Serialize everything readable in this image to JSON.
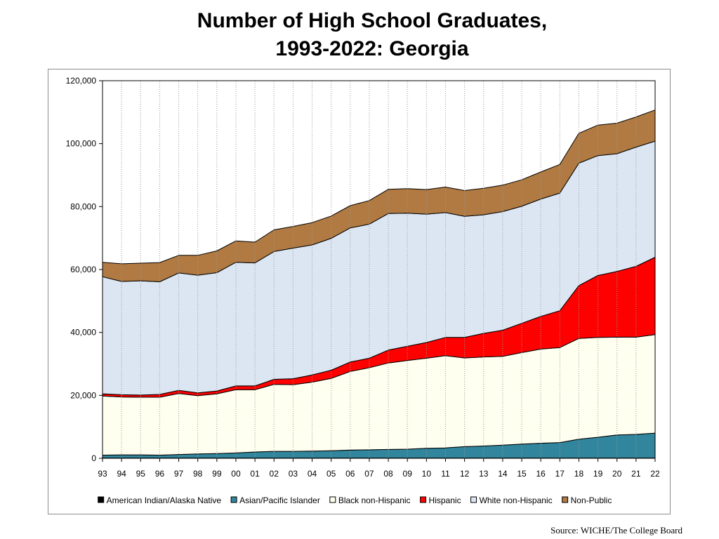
{
  "title": {
    "line1": "Number of High School Graduates,",
    "line2": "1993-2022:  Georgia"
  },
  "source": "Source: WICHE/The College Board",
  "chart_data": {
    "type": "area",
    "stacked": true,
    "title": "Number of High School Graduates, 1993-2022:  Georgia",
    "xlabel": "",
    "ylabel": "",
    "ylim": [
      0,
      120000
    ],
    "yticks": [
      0,
      20000,
      40000,
      60000,
      80000,
      100000,
      120000
    ],
    "ytick_labels": [
      "0",
      "20,000",
      "40,000",
      "60,000",
      "80,000",
      "100,000",
      "120,000"
    ],
    "grid": "vertical dotted",
    "legend": "bottom",
    "x": [
      "93",
      "94",
      "95",
      "96",
      "97",
      "98",
      "99",
      "00",
      "01",
      "02",
      "03",
      "04",
      "05",
      "06",
      "07",
      "08",
      "09",
      "10",
      "11",
      "12",
      "13",
      "14",
      "15",
      "16",
      "17",
      "18",
      "19",
      "20",
      "21",
      "22"
    ],
    "series": [
      {
        "name": "American Indian/Alaska  Native",
        "color": "#000000",
        "values": [
          100,
          100,
          100,
          100,
          100,
          100,
          100,
          100,
          100,
          100,
          100,
          100,
          100,
          100,
          100,
          100,
          100,
          100,
          100,
          100,
          100,
          100,
          100,
          100,
          100,
          100,
          100,
          100,
          100,
          100
        ]
      },
      {
        "name": "Asian/Pacific Islander",
        "color": "#31859c",
        "values": [
          900,
          1000,
          1000,
          900,
          1100,
          1300,
          1400,
          1600,
          1900,
          2100,
          2100,
          2200,
          2300,
          2500,
          2600,
          2700,
          2800,
          3100,
          3200,
          3600,
          3800,
          4100,
          4400,
          4700,
          4900,
          6000,
          6600,
          7300,
          7500,
          7900
        ]
      },
      {
        "name": "Black non-Hispanic",
        "color": "#fffff0",
        "values": [
          18800,
          18400,
          18300,
          18400,
          19400,
          18500,
          19000,
          20100,
          19800,
          21300,
          21200,
          21900,
          23000,
          25000,
          26100,
          27500,
          28200,
          28600,
          29300,
          28200,
          28300,
          28200,
          29100,
          29900,
          30200,
          32000,
          31700,
          31100,
          30900,
          31300
        ]
      },
      {
        "name": "Hispanic",
        "color": "#ff0000",
        "values": [
          700,
          700,
          700,
          900,
          1000,
          900,
          900,
          1200,
          1200,
          1600,
          1900,
          2300,
          2600,
          3000,
          3000,
          4100,
          4500,
          5000,
          5800,
          6500,
          7500,
          8300,
          9300,
          10400,
          11700,
          16800,
          19700,
          20900,
          22500,
          24600
        ]
      },
      {
        "name": "White non-Hispanic",
        "color": "#dce6f2",
        "values": [
          37200,
          36000,
          36300,
          35800,
          37300,
          37400,
          37600,
          39300,
          39100,
          40600,
          41500,
          41300,
          41900,
          42600,
          42600,
          43400,
          42300,
          40800,
          39700,
          38500,
          37700,
          37700,
          37200,
          37300,
          37400,
          38900,
          38100,
          37400,
          37900,
          36900
        ]
      },
      {
        "name": "Non-Public",
        "color": "#b07a42",
        "values": [
          4600,
          5600,
          5600,
          6100,
          5600,
          6300,
          6900,
          6800,
          6600,
          6900,
          6900,
          7100,
          7100,
          7100,
          7500,
          7700,
          7800,
          7800,
          8100,
          8200,
          8400,
          8400,
          8400,
          8600,
          9100,
          9500,
          9700,
          9700,
          9600,
          9900
        ]
      }
    ]
  }
}
